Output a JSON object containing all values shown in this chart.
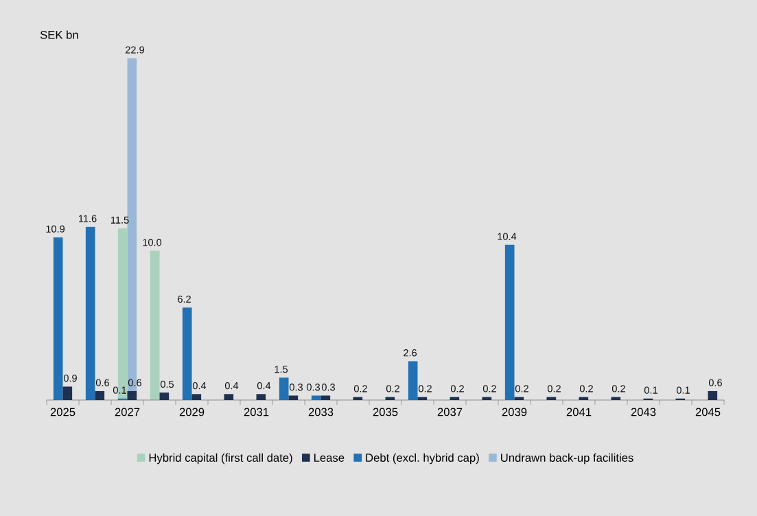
{
  "chart_data": {
    "type": "bar",
    "ylabel": "SEK bn",
    "categories": [
      "2025",
      null,
      "2027",
      null,
      "2029",
      null,
      "2031",
      null,
      "2033",
      null,
      "2035",
      null,
      "2037",
      null,
      "2039",
      null,
      "2041",
      null,
      "2043",
      null,
      "2045"
    ],
    "series": [
      {
        "name": "Hybrid capital (first call date)",
        "color": "#a9d1bd",
        "values": [
          null,
          null,
          11.5,
          10.0,
          null,
          null,
          null,
          null,
          null,
          null,
          null,
          null,
          null,
          null,
          null,
          null,
          null,
          null,
          null,
          null,
          null
        ],
        "value_labels": [
          null,
          null,
          "11.5",
          "10.0",
          null,
          null,
          null,
          null,
          null,
          null,
          null,
          null,
          null,
          null,
          null,
          null,
          null,
          null,
          null,
          null,
          null
        ]
      },
      {
        "name": "Lease",
        "color": "#1f3150",
        "values": [
          0.9,
          0.6,
          0.6,
          0.5,
          0.4,
          0.4,
          0.4,
          0.3,
          0.3,
          0.2,
          0.2,
          0.2,
          0.2,
          0.2,
          0.2,
          0.2,
          0.2,
          0.2,
          0.1,
          0.1,
          0.6
        ]
      },
      {
        "name": "Debt (excl. hybrid cap)",
        "color": "#2271b5",
        "values": [
          10.9,
          11.6,
          0.1,
          null,
          6.2,
          null,
          null,
          1.5,
          0.3,
          null,
          null,
          2.6,
          null,
          null,
          10.4,
          null,
          null,
          null,
          null,
          null,
          null
        ]
      },
      {
        "name": "Undrawn back-up facilities",
        "color": "#9ab8d6",
        "values": [
          null,
          null,
          22.9,
          null,
          null,
          null,
          null,
          null,
          null,
          null,
          null,
          null,
          null,
          null,
          null,
          null,
          null,
          null,
          null,
          null,
          null
        ]
      }
    ],
    "data_labels": true,
    "legend": "bottom",
    "grid": false
  }
}
